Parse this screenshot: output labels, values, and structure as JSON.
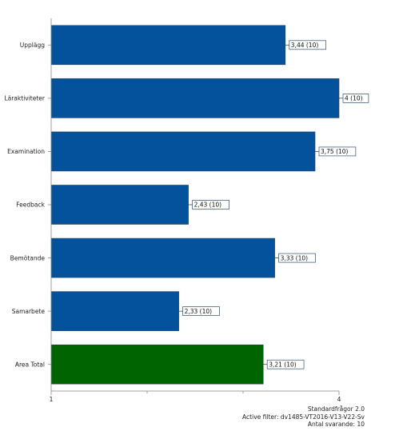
{
  "chart_data": {
    "type": "bar",
    "orientation": "horizontal",
    "categories": [
      "Upplägg",
      "Läraktiviteter",
      "Examination",
      "Feedback",
      "Bemötande",
      "Samarbete",
      "Area Total"
    ],
    "values": [
      3.44,
      4,
      3.75,
      2.43,
      3.33,
      2.33,
      3.21
    ],
    "data_labels": [
      "3,44 (10)",
      "4 (10)",
      "3,75 (10)",
      "2,43 (10)",
      "3,33 (10)",
      "2,33 (10)",
      "3,21 (10)"
    ],
    "bar_colors": [
      "#04529c",
      "#04529c",
      "#04529c",
      "#04529c",
      "#04529c",
      "#04529c",
      "#006400"
    ],
    "xlim": [
      1,
      4
    ],
    "x_ticks": [
      1,
      4
    ],
    "x_tick_labels": [
      "1",
      "4"
    ],
    "x_minor_ticks": [
      2,
      3
    ],
    "title": "",
    "xlabel": "",
    "ylabel": "",
    "grid": false,
    "legend": false
  },
  "footer": {
    "line1": "Standardfrågor 2.0",
    "line2": "Active filter: dv1485-VT2016-V13-V22-Sv",
    "line3": "Antal svarande: 10"
  }
}
